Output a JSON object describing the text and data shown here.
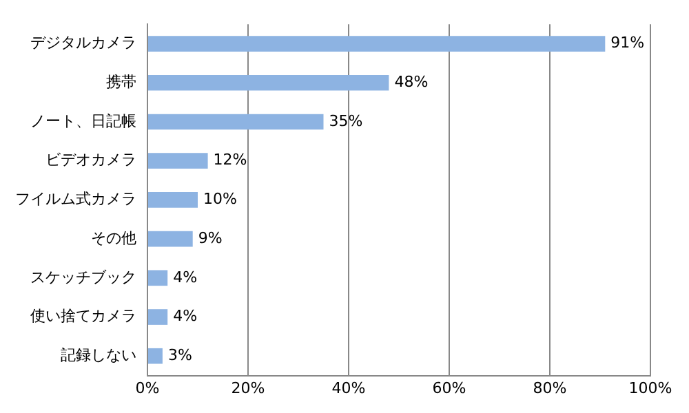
{
  "chart_data": {
    "type": "bar",
    "orientation": "horizontal",
    "categories": [
      "デジタルカメラ",
      "携帯",
      "ノート、日記帳",
      "ビデオカメラ",
      "フイルム式カメラ",
      "その他",
      "スケッチブック",
      "使い捨てカメラ",
      "記録しない"
    ],
    "values": [
      91,
      48,
      35,
      12,
      10,
      9,
      4,
      4,
      3
    ],
    "value_labels": [
      "91%",
      "48%",
      "35%",
      "12%",
      "10%",
      "9%",
      "4%",
      "4%",
      "3%"
    ],
    "color": "#8db3e2",
    "xlim": [
      0,
      100
    ],
    "xticks": [
      {
        "value": 0,
        "label": "0%"
      },
      {
        "value": 20,
        "label": "20%"
      },
      {
        "value": 40,
        "label": "40%"
      },
      {
        "value": 60,
        "label": "60%"
      },
      {
        "value": 80,
        "label": "80%"
      },
      {
        "value": 100,
        "label": "100%"
      }
    ],
    "grid": "x",
    "legend": false
  }
}
